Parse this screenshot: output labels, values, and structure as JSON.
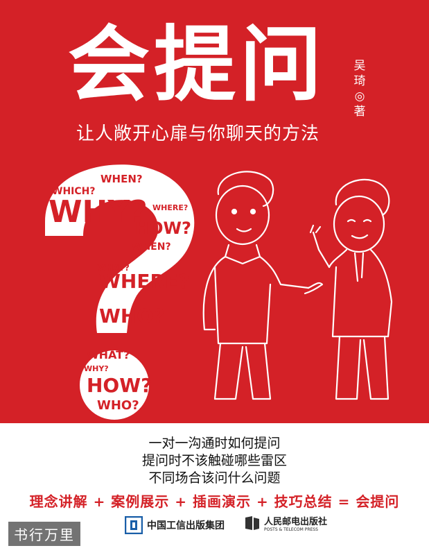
{
  "cover": {
    "title": "会提问",
    "author": "吴琦◎著",
    "subtitle": "让人敞开心扉与你聊天的方法",
    "question_mark_words": [
      "WHICH?",
      "WHEN?",
      "WHY?",
      "HOW?",
      "WHERE?",
      "WHEN?",
      "WHAT?",
      "WHERE?",
      "WHO?",
      "WHAT?",
      "WHY?",
      "HOW?",
      "WHO?"
    ],
    "bullets": [
      "一对一沟通时如何提问",
      "提问时不该触碰哪些雷区",
      "不同场合该问什么问题"
    ],
    "formula": "理念讲解 + 案例展示 + 插画演示 + 技巧总结 = 会提问",
    "publisher_1": "中国工信出版集团",
    "publisher_2_cn": "人民邮电出版社",
    "publisher_2_en": "POSTS & TELECOM PRESS",
    "watermark": "书行万里",
    "colors": {
      "red": "#d42127",
      "white": "#ffffff",
      "text": "#111111"
    }
  }
}
